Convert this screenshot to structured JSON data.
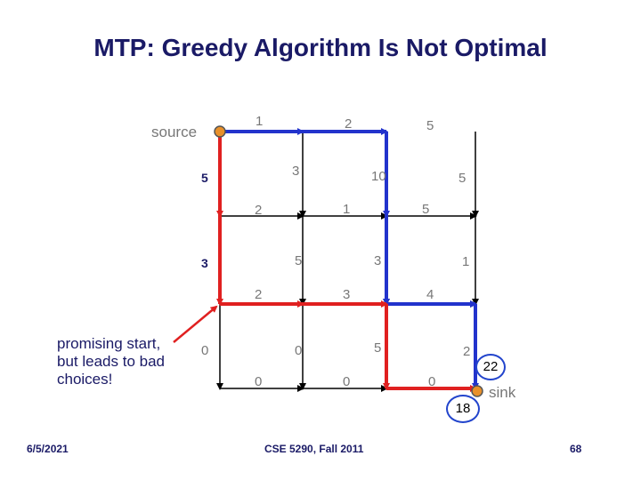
{
  "title": "MTP: Greedy Algorithm Is Not Optimal",
  "grid": {
    "source_label": "source",
    "sink_label": "sink",
    "horizontal_weights": [
      [
        "1",
        "2",
        "5"
      ],
      [
        "2",
        "1",
        "5"
      ],
      [
        "2",
        "3",
        "4"
      ],
      [
        "0",
        "0",
        "0"
      ]
    ],
    "vertical_weights": [
      [
        "5",
        "3",
        "10",
        "5"
      ],
      [
        "3",
        "5",
        "3",
        "1"
      ],
      [
        "0",
        "0",
        "5",
        "2"
      ]
    ],
    "greedy_path_color": "#2233cc",
    "optimal_path_color": "#e02020",
    "greedy_score": "22",
    "optimal_score": "18"
  },
  "annotation": "promising start,\nbut leads to bad\nchoices!",
  "footer": {
    "date": "6/5/2021",
    "course": "CSE 5290, Fall 2011",
    "page": "68"
  }
}
